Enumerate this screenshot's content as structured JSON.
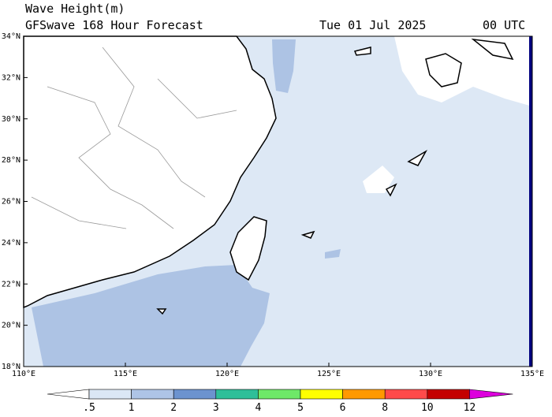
{
  "header": {
    "title": "Wave Height(m)",
    "subtitle": "GFSwave 168 Hour Forecast",
    "date": "Tue 01 Jul 2025",
    "time": "00 UTC"
  },
  "map": {
    "lat_labels": [
      "34°N",
      "32°N",
      "30°N",
      "28°N",
      "26°N",
      "24°N",
      "22°N",
      "20°N",
      "18°N"
    ],
    "lon_labels": [
      "110°E",
      "115°E",
      "120°E",
      "125°E",
      "130°E",
      "135°E"
    ]
  },
  "colorbar": {
    "labels": [
      ".5",
      "1",
      "2",
      "3",
      "4",
      "5",
      "6",
      "8",
      "10",
      "12"
    ],
    "colors": [
      "#ffffff",
      "#dbe7f5",
      "#aec4e6",
      "#6c93cf",
      "#2fbf99",
      "#6ee868",
      "#ffff00",
      "#ff9900",
      "#ff4a4a",
      "#c40000",
      "#dd00dd"
    ]
  }
}
